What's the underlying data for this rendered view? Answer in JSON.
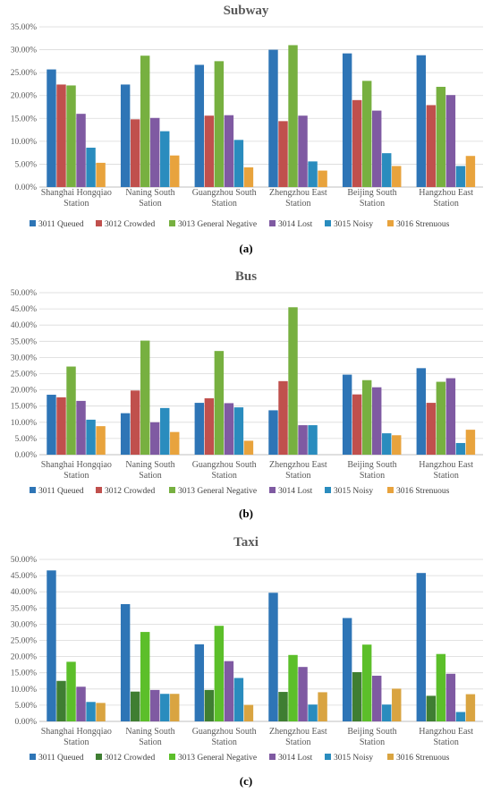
{
  "chart_data": [
    {
      "type": "bar",
      "title": "Subway",
      "subcaption": "(a)",
      "categories": [
        "Shanghai Hongqiao Station",
        "Naning South Sation",
        "Guangzhou South Station",
        "Zhengzhou East Station",
        "Beijing South Station",
        "Hangzhou East Station"
      ],
      "ylim": [
        0,
        35
      ],
      "yticks": [
        "0.00%",
        "5.00%",
        "10.00%",
        "15.00%",
        "20.00%",
        "25.00%",
        "30.00%",
        "35.00%"
      ],
      "series": [
        {
          "name": "3011 Queued",
          "color": "#2E75B6",
          "values": [
            25.7,
            22.4,
            26.7,
            30.0,
            29.2,
            28.8
          ]
        },
        {
          "name": "3012 Crowded",
          "color": "#C0504D",
          "values": [
            22.4,
            14.8,
            15.6,
            14.4,
            19.0,
            17.9
          ]
        },
        {
          "name": "3013 General Negative",
          "color": "#77B040",
          "values": [
            22.2,
            28.7,
            27.5,
            31.0,
            23.2,
            21.9
          ]
        },
        {
          "name": "3014 Lost",
          "color": "#7F5AA2",
          "values": [
            16.0,
            15.1,
            15.7,
            15.6,
            16.7,
            20.1
          ]
        },
        {
          "name": "3015 Noisy",
          "color": "#2A8CBE",
          "values": [
            8.6,
            12.2,
            10.3,
            5.6,
            7.4,
            4.6
          ]
        },
        {
          "name": "3016 Strenuous",
          "color": "#E8A33D",
          "values": [
            5.3,
            6.9,
            4.3,
            3.6,
            4.6,
            6.8
          ]
        }
      ]
    },
    {
      "type": "bar",
      "title": "Bus",
      "subcaption": "(b)",
      "categories": [
        "Shanghai Hongqiao Station",
        "Naning South Sation",
        "Guangzhou South Station",
        "Zhengzhou East Station",
        "Beijing South Station",
        "Hangzhou East Station"
      ],
      "ylim": [
        0,
        50
      ],
      "yticks": [
        "0.00%",
        "5.00%",
        "10.00%",
        "15.00%",
        "20.00%",
        "25.00%",
        "30.00%",
        "35.00%",
        "40.00%",
        "45.00%",
        "50.00%"
      ],
      "series": [
        {
          "name": "3011 Queued",
          "color": "#2E75B6",
          "values": [
            18.5,
            12.8,
            16.0,
            13.7,
            24.7,
            26.7
          ]
        },
        {
          "name": "3012 Crowded",
          "color": "#C0504D",
          "values": [
            17.7,
            19.8,
            17.4,
            22.7,
            18.6,
            16.0
          ]
        },
        {
          "name": "3013 General Negative",
          "color": "#77B040",
          "values": [
            27.2,
            35.2,
            32.0,
            45.5,
            23.0,
            22.5
          ]
        },
        {
          "name": "3014 Lost",
          "color": "#7F5AA2",
          "values": [
            16.6,
            10.0,
            15.9,
            9.1,
            20.8,
            23.6
          ]
        },
        {
          "name": "3015 Noisy",
          "color": "#2A8CBE",
          "values": [
            10.8,
            14.4,
            14.6,
            9.1,
            6.6,
            3.6
          ]
        },
        {
          "name": "3016 Strenuous",
          "color": "#E8A33D",
          "values": [
            8.8,
            7.0,
            4.3,
            0,
            6.0,
            7.7
          ]
        }
      ]
    },
    {
      "type": "bar",
      "title": "Taxi",
      "subcaption": "(c)",
      "categories": [
        "Shanghai Hongqiao Station",
        "Naning South Sation",
        "Guangzhou South Station",
        "Zhengzhou East Station",
        "Beijing South Station",
        "Hangzhou East Station"
      ],
      "ylim": [
        0,
        50
      ],
      "yticks": [
        "0.00%",
        "5.00%",
        "10.00%",
        "15.00%",
        "20.00%",
        "25.00%",
        "30.00%",
        "35.00%",
        "40.00%",
        "45.00%",
        "50.00%"
      ],
      "series": [
        {
          "name": "3011 Queued",
          "color": "#2E75B6",
          "values": [
            46.6,
            36.2,
            23.8,
            39.7,
            31.9,
            45.8
          ]
        },
        {
          "name": "3012 Crowded",
          "color": "#3F7E32",
          "values": [
            12.5,
            9.2,
            9.7,
            9.1,
            15.2,
            7.9
          ]
        },
        {
          "name": "3013 General Negative",
          "color": "#5CBF2A",
          "values": [
            18.4,
            27.6,
            29.5,
            20.5,
            23.7,
            20.8
          ]
        },
        {
          "name": "3014 Lost",
          "color": "#7F5AA2",
          "values": [
            10.7,
            9.7,
            18.6,
            16.8,
            14.1,
            14.7
          ]
        },
        {
          "name": "3015 Noisy",
          "color": "#2A8CBE",
          "values": [
            6.0,
            8.5,
            13.4,
            5.2,
            5.2,
            2.9
          ]
        },
        {
          "name": "3016 Strenuous",
          "color": "#D9A441",
          "values": [
            5.7,
            8.5,
            5.1,
            9.0,
            10.1,
            8.4
          ]
        }
      ]
    }
  ]
}
